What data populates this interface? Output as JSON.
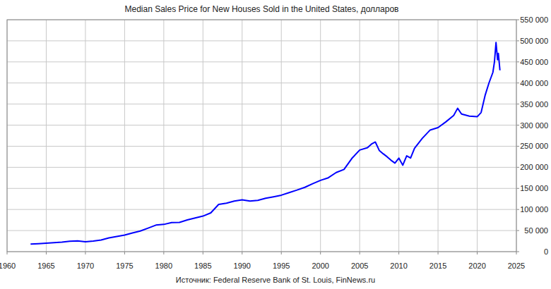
{
  "chart_data": {
    "type": "line",
    "title": "Median Sales Price for New Houses Sold in the United States, долларов",
    "source": "Источник: Federal Reserve Bank of St. Louis, FinNews.ru",
    "color": "#0000ff",
    "grid": true,
    "x": [
      1963,
      1964,
      1965,
      1966,
      1967,
      1968,
      1969,
      1970,
      1971,
      1972,
      1973,
      1974,
      1975,
      1976,
      1977,
      1978,
      1979,
      1980,
      1981,
      1982,
      1983,
      1984,
      1985,
      1986,
      1987,
      1988,
      1989,
      1990,
      1991,
      1992,
      1993,
      1994,
      1995,
      1996,
      1997,
      1998,
      1999,
      2000,
      2001,
      2002,
      2003,
      2004,
      2005,
      2006,
      2006.5,
      2007,
      2007.5,
      2008,
      2008.5,
      2009,
      2009.5,
      2010,
      2010.5,
      2011,
      2011.5,
      2012,
      2013,
      2014,
      2015,
      2016,
      2017,
      2017.5,
      2018,
      2019,
      2020,
      2020.5,
      2021,
      2021.5,
      2022,
      2022.2,
      2022.4,
      2022.6,
      2022.7,
      2022.9
    ],
    "values": [
      18000,
      18900,
      20000,
      21400,
      22700,
      24700,
      25600,
      23400,
      25200,
      27600,
      32500,
      35900,
      39300,
      44200,
      48800,
      55700,
      62900,
      64600,
      68900,
      69300,
      75300,
      79900,
      84300,
      92000,
      112000,
      115000,
      120000,
      122900,
      120000,
      121500,
      126500,
      130000,
      133900,
      140000,
      146000,
      152500,
      161000,
      169000,
      175200,
      187600,
      195000,
      221000,
      240900,
      246500,
      255000,
      260000,
      240000,
      232100,
      225000,
      216700,
      210000,
      221800,
      205000,
      227200,
      222000,
      245200,
      268900,
      288500,
      294200,
      307800,
      323100,
      340000,
      326400,
      321500,
      320000,
      330000,
      370000,
      400000,
      425000,
      450000,
      496000,
      455000,
      470000,
      430000
    ],
    "xlim": [
      1960,
      2025
    ],
    "xticks": [
      1960,
      1965,
      1970,
      1975,
      1980,
      1985,
      1990,
      1995,
      2000,
      2005,
      2010,
      2015,
      2020,
      2025
    ],
    "ylim": [
      0,
      550000
    ],
    "yticks": [
      0,
      {
        "value": 50000,
        "label": "50 000"
      },
      {
        "value": 100000,
        "label": "100 000"
      },
      {
        "value": 150000,
        "label": "150 000"
      },
      {
        "value": 200000,
        "label": "200 000"
      },
      {
        "value": 250000,
        "label": "250 000"
      },
      {
        "value": 300000,
        "label": "300 000"
      },
      {
        "value": 350000,
        "label": "350 000"
      },
      {
        "value": 400000,
        "label": "400 000"
      },
      {
        "value": 450000,
        "label": "450 000"
      },
      {
        "value": 500000,
        "label": "500 000"
      },
      {
        "value": 550000,
        "label": "550 000"
      }
    ]
  }
}
